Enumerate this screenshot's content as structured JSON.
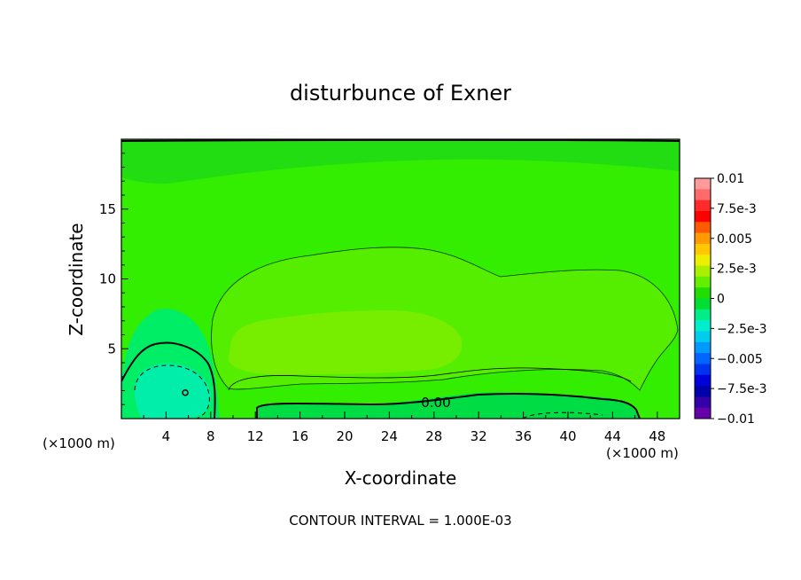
{
  "chart_data": {
    "type": "heatmap",
    "title": "disturbunce of Exner",
    "xlabel": "X-coordinate",
    "ylabel": "Z-coordinate",
    "x_unit_label": "(×1000 m)",
    "x_unit_label_right": "(×1000 m)",
    "xlim": [
      0,
      50
    ],
    "ylim": [
      0,
      20
    ],
    "x_ticks": [
      4,
      8,
      12,
      16,
      20,
      24,
      28,
      32,
      36,
      40,
      44,
      48
    ],
    "y_ticks": [
      5,
      10,
      15
    ],
    "footer": "CONTOUR INTERVAL = 1.000E-03",
    "contour_label": "0.00",
    "colorbar": {
      "labels": [
        "0.01",
        "7.5e-3",
        "0.005",
        "2.5e-3",
        "0",
        "−2.5e-3",
        "−0.005",
        "−7.5e-3",
        "−0.01"
      ],
      "values": [
        0.01,
        0.0075,
        0.005,
        0.0025,
        0,
        -0.0025,
        -0.005,
        -0.0075,
        -0.01
      ],
      "colors": [
        "#ff9a9a",
        "#ff6a6a",
        "#ff2a2a",
        "#ff0000",
        "#ff5a00",
        "#ff9a00",
        "#ffc800",
        "#eeee00",
        "#aaee00",
        "#66ee00",
        "#22dd00",
        "#00dd33",
        "#00ee88",
        "#00eecc",
        "#00ccee",
        "#0099ff",
        "#0066ff",
        "#0033ee",
        "#0000dd",
        "#0000aa",
        "#3300aa",
        "#6600aa"
      ]
    },
    "fields": {
      "background": "#33ee00",
      "top_band": "#22dd11",
      "positive_region": "#55ee00",
      "core_region": "#77ee00",
      "negative_left": "#00ee66",
      "negative_core": "#00eeaa",
      "negative_bottom": "#00dd44"
    }
  }
}
